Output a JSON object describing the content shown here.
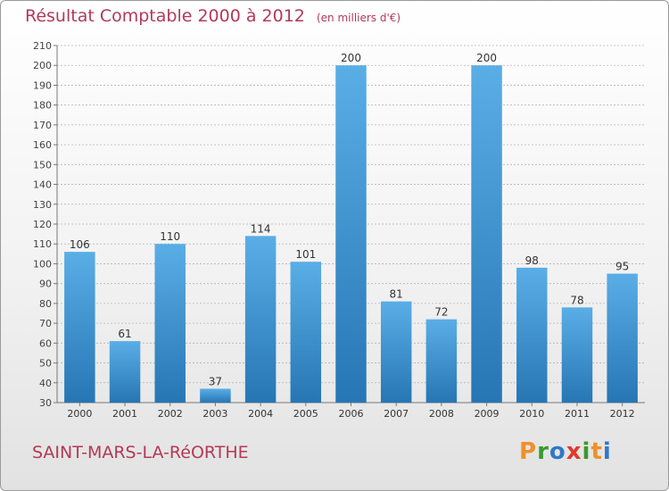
{
  "header": {
    "title": "Résultat Comptable 2000 à 2012",
    "unit": "(en milliers d'€)"
  },
  "footer": {
    "place": "SAINT-MARS-LA-RéORTHE",
    "logo_letters": [
      "P",
      "r",
      "o",
      "x",
      "i",
      "t",
      "i"
    ],
    "logo_colors": [
      "#f0902a",
      "#3a9a2c",
      "#2f79c9",
      "#e13a2a",
      "#3a9a2c",
      "#f0902a",
      "#2f79c9"
    ]
  },
  "colors": {
    "bar_top": "#5aaee6",
    "bar_bottom": "#2676b4",
    "grid": "#b4b4b4",
    "title": "#b23a57"
  },
  "chart_data": {
    "type": "bar",
    "title": "Résultat Comptable 2000 à 2012",
    "subtitle": "(en milliers d'€)",
    "categories": [
      "2000",
      "2001",
      "2002",
      "2003",
      "2004",
      "2005",
      "2006",
      "2007",
      "2008",
      "2009",
      "2010",
      "2011",
      "2012"
    ],
    "values": [
      106,
      61,
      110,
      37,
      114,
      101,
      200,
      81,
      72,
      200,
      98,
      78,
      95
    ],
    "ylim": [
      30,
      210
    ],
    "yticks": [
      30,
      40,
      50,
      60,
      70,
      80,
      90,
      100,
      110,
      120,
      130,
      140,
      150,
      160,
      170,
      180,
      190,
      200,
      210
    ],
    "grid": true,
    "data_labels": true
  }
}
